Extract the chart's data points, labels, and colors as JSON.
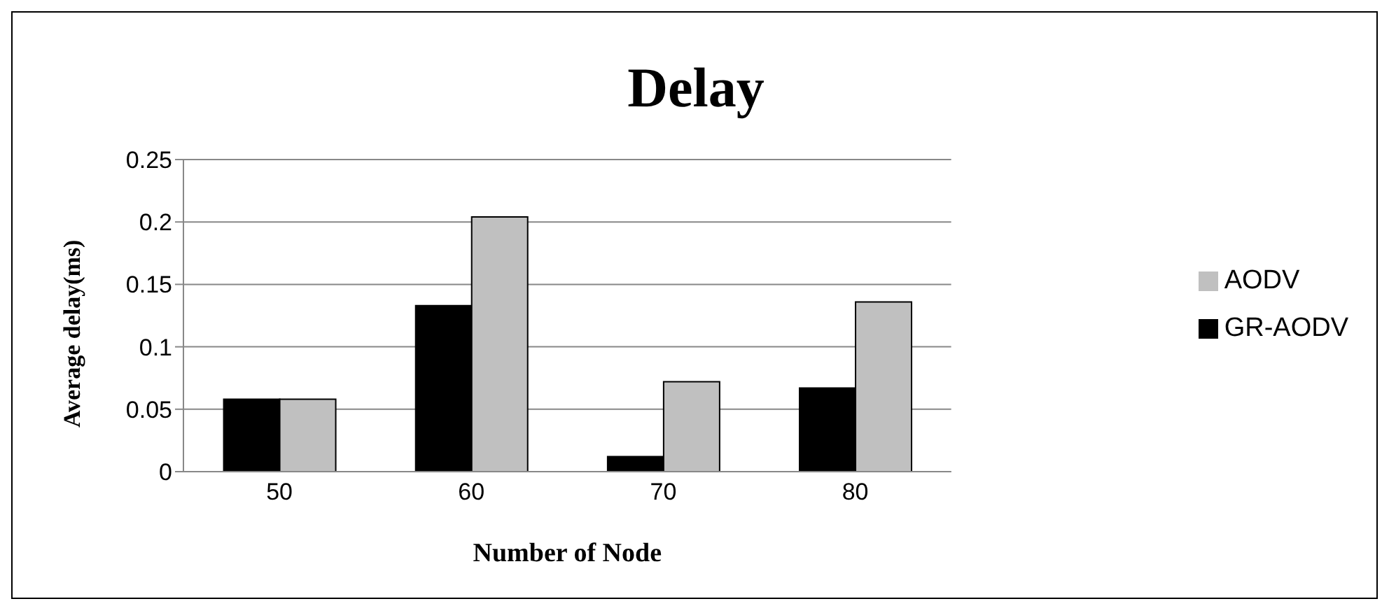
{
  "chart_data": {
    "type": "bar",
    "title": "Delay",
    "xlabel": "Number of Node",
    "ylabel": "Average delay(ms)",
    "categories": [
      "50",
      "60",
      "70",
      "80"
    ],
    "series": [
      {
        "name": "GR-AODV",
        "color": "#000000",
        "values": [
          0.058,
          0.133,
          0.012,
          0.067
        ]
      },
      {
        "name": "AODV",
        "color": "#c0c0c0",
        "values": [
          0.058,
          0.204,
          0.072,
          0.136
        ]
      }
    ],
    "ylim": [
      0,
      0.25
    ],
    "yticks": [
      0,
      0.05,
      0.1,
      0.15,
      0.2,
      0.25
    ],
    "grid": "y",
    "legend": "right"
  }
}
